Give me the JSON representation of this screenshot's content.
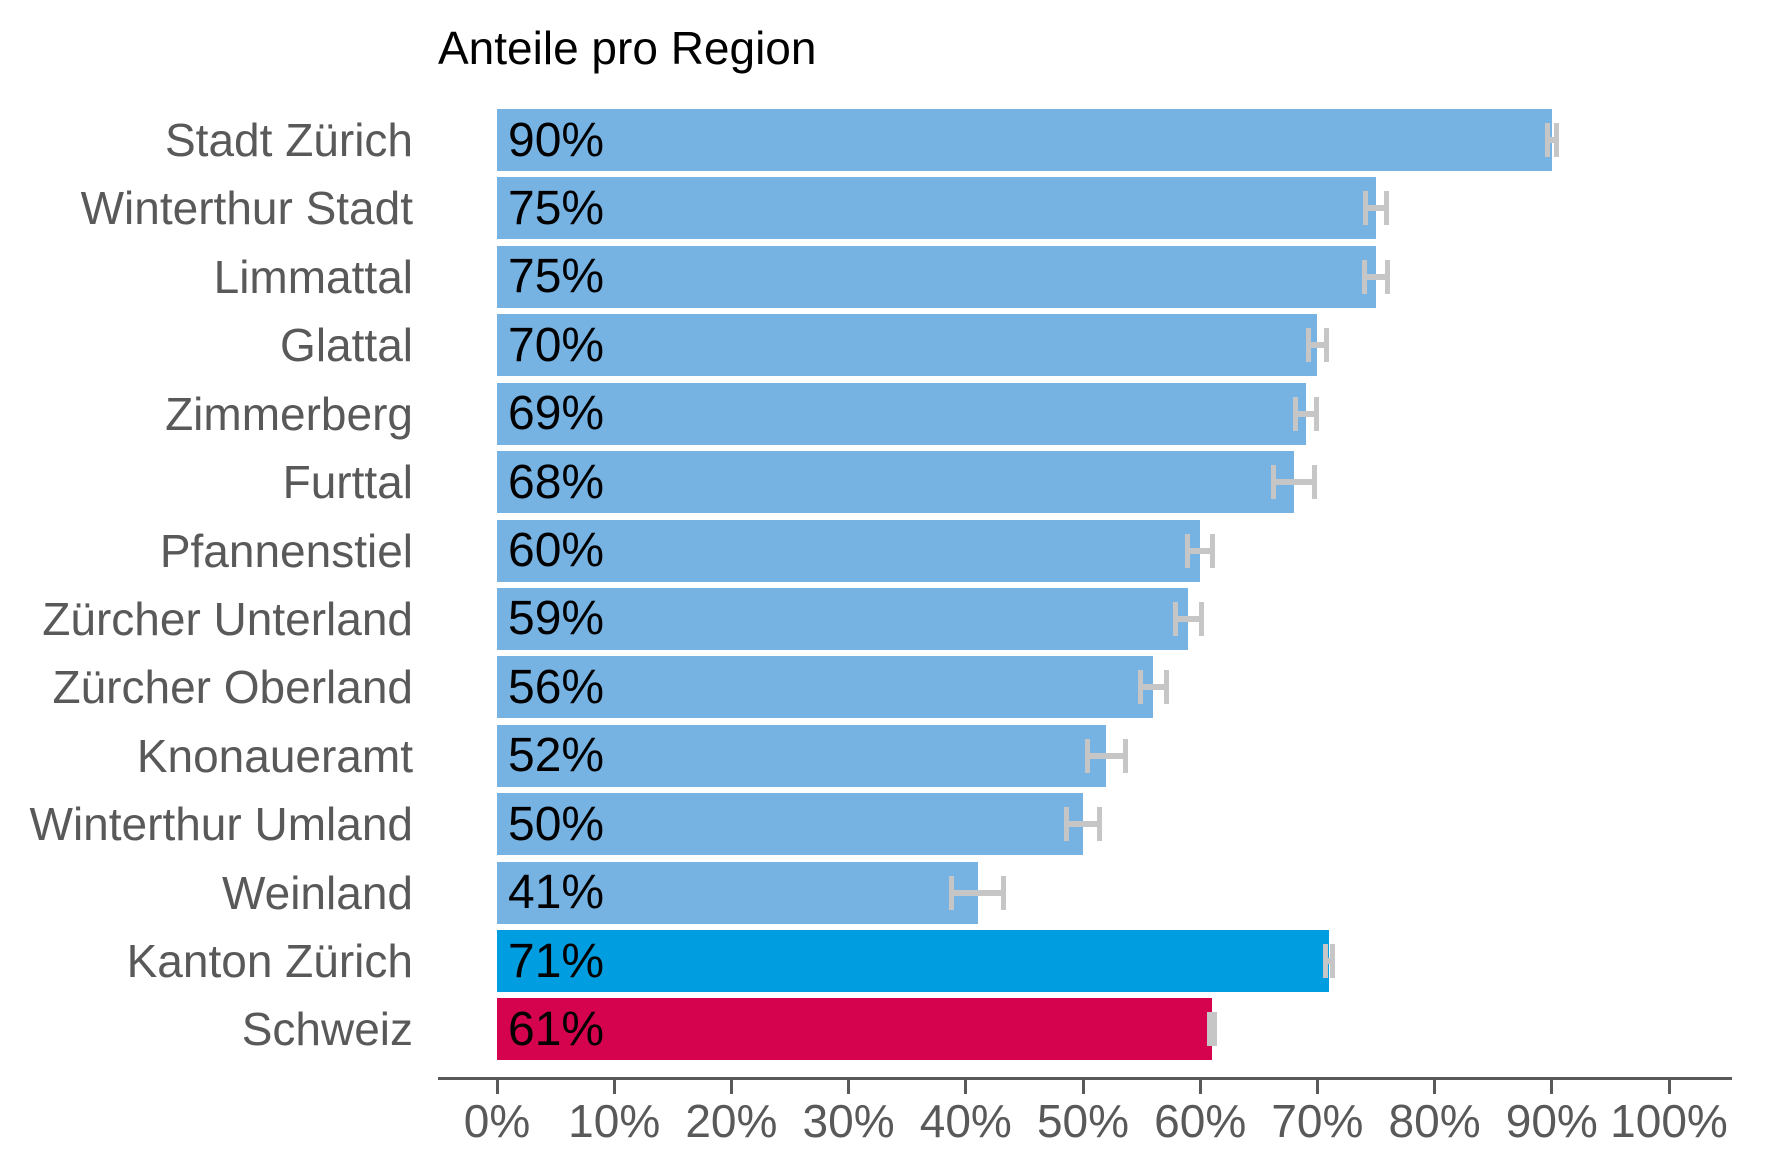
{
  "page": {
    "background": "#ffffff"
  },
  "chart": {
    "title": "Anteile pro Region"
  },
  "chart_data": {
    "type": "bar",
    "orientation": "horizontal",
    "title": "Anteile pro Region",
    "value_unit": "%",
    "xlim": [
      0,
      100
    ],
    "x_tick_labels": [
      "0%",
      "10%",
      "20%",
      "30%",
      "40%",
      "50%",
      "60%",
      "70%",
      "80%",
      "90%",
      "100%"
    ],
    "grid": false,
    "error_bars": true,
    "legend": "none",
    "points": [
      {
        "category": "Stadt Zürich",
        "value": 90,
        "label": "90%",
        "ci_low": 89.4,
        "ci_high": 90.6,
        "color_key": "region"
      },
      {
        "category": "Winterthur Stadt",
        "value": 75,
        "label": "75%",
        "ci_low": 73.9,
        "ci_high": 76.1,
        "color_key": "region"
      },
      {
        "category": "Limmattal",
        "value": 75,
        "label": "75%",
        "ci_low": 73.8,
        "ci_high": 76.2,
        "color_key": "region"
      },
      {
        "category": "Glattal",
        "value": 70,
        "label": "70%",
        "ci_low": 69.0,
        "ci_high": 71.0,
        "color_key": "region"
      },
      {
        "category": "Zimmerberg",
        "value": 69,
        "label": "69%",
        "ci_low": 67.9,
        "ci_high": 70.1,
        "color_key": "region"
      },
      {
        "category": "Furttal",
        "value": 68,
        "label": "68%",
        "ci_low": 66.0,
        "ci_high": 70.0,
        "color_key": "region"
      },
      {
        "category": "Pfannenstiel",
        "value": 60,
        "label": "60%",
        "ci_low": 58.7,
        "ci_high": 61.3,
        "color_key": "region"
      },
      {
        "category": "Zürcher Unterland",
        "value": 59,
        "label": "59%",
        "ci_low": 57.7,
        "ci_high": 60.3,
        "color_key": "region"
      },
      {
        "category": "Zürcher Oberland",
        "value": 56,
        "label": "56%",
        "ci_low": 54.7,
        "ci_high": 57.3,
        "color_key": "region"
      },
      {
        "category": "Knonaueramt",
        "value": 52,
        "label": "52%",
        "ci_low": 50.2,
        "ci_high": 53.8,
        "color_key": "region"
      },
      {
        "category": "Winterthur Umland",
        "value": 50,
        "label": "50%",
        "ci_low": 48.4,
        "ci_high": 51.6,
        "color_key": "region"
      },
      {
        "category": "Weinland",
        "value": 41,
        "label": "41%",
        "ci_low": 38.6,
        "ci_high": 43.4,
        "color_key": "region"
      },
      {
        "category": "Kanton Zürich",
        "value": 71,
        "label": "71%",
        "ci_low": 70.5,
        "ci_high": 71.5,
        "color_key": "kanton"
      },
      {
        "category": "Schweiz",
        "value": 61,
        "label": "61%",
        "ci_low": 60.6,
        "ci_high": 61.4,
        "color_key": "schweiz"
      }
    ]
  },
  "colors": {
    "region": "#76b3e3",
    "kanton": "#009ee0",
    "schweiz": "#d5034e",
    "error_bar": "#c6c6c6",
    "axis_line": "#595959",
    "tick_mark": "#595959",
    "tick_label": "#595959",
    "category_label": "#595959",
    "value_label": "#000000",
    "title": "#000000"
  }
}
